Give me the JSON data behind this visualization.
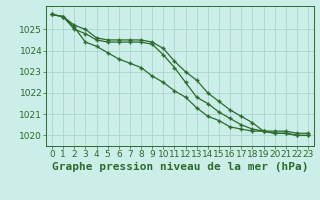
{
  "x": [
    0,
    1,
    2,
    3,
    4,
    5,
    6,
    7,
    8,
    9,
    10,
    11,
    12,
    13,
    14,
    15,
    16,
    17,
    18,
    19,
    20,
    21,
    22,
    23
  ],
  "line1": [
    1025.7,
    1025.6,
    1025.2,
    1025.0,
    1024.6,
    1024.5,
    1024.5,
    1024.5,
    1024.5,
    1024.4,
    1024.1,
    1023.5,
    1023.0,
    1022.6,
    1022.0,
    1021.6,
    1021.2,
    1020.9,
    1020.6,
    1020.2,
    1020.2,
    1020.2,
    1020.1,
    1020.1
  ],
  "line2": [
    1025.7,
    1025.6,
    1025.0,
    1024.8,
    1024.5,
    1024.4,
    1024.4,
    1024.4,
    1024.4,
    1024.3,
    1023.8,
    1023.2,
    1022.5,
    1021.8,
    1021.5,
    1021.1,
    1020.8,
    1020.5,
    1020.3,
    1020.2,
    1020.1,
    1020.1,
    1020.0,
    1020.0
  ],
  "line3": [
    1025.7,
    1025.6,
    1025.1,
    1024.4,
    1024.2,
    1023.9,
    1023.6,
    1023.4,
    1023.2,
    1022.8,
    1022.5,
    1022.1,
    1021.8,
    1021.3,
    1020.9,
    1020.7,
    1020.4,
    1020.3,
    1020.2,
    1020.2,
    1020.1,
    1020.1,
    1020.0,
    1020.0
  ],
  "ylim": [
    1019.5,
    1026.1
  ],
  "yticks": [
    1020,
    1021,
    1022,
    1023,
    1024,
    1025
  ],
  "xlabel": "Graphe pression niveau de la mer (hPa)",
  "bg_color": "#cceee8",
  "grid_color": "#aad4ce",
  "line_color": "#2d6a2d",
  "marker": "+",
  "tick_fontsize": 6.5,
  "xlabel_fontsize": 8
}
